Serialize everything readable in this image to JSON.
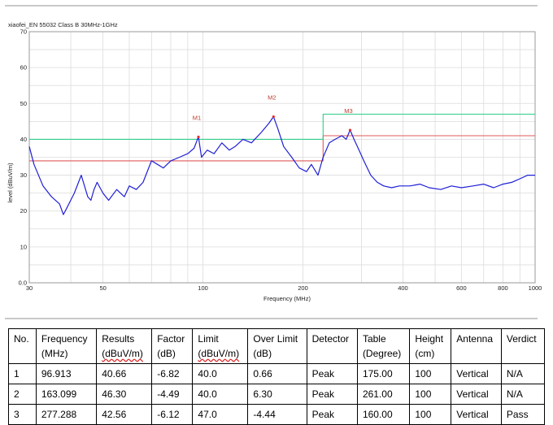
{
  "chart_data": {
    "type": "line",
    "title": "xiaofei_EN 55032 Class B 30MHz-1GHz",
    "xlabel": "Frequency (MHz)",
    "ylabel": "level (dBuV/m)",
    "x_scale": "log",
    "xlim": [
      30,
      1000
    ],
    "ylim": [
      0,
      70
    ],
    "x_ticks": [
      30,
      50,
      100,
      200,
      400,
      600,
      800,
      1000
    ],
    "x_tick_labels": [
      "30",
      "50",
      "100",
      "200",
      "400",
      "600",
      "800",
      "1000"
    ],
    "y_ticks": [
      0,
      10,
      20,
      30,
      40,
      50,
      60,
      70
    ],
    "y_tick_labels": [
      "0.0",
      "10",
      "20",
      "30",
      "40",
      "50",
      "60",
      "70"
    ],
    "grid": true,
    "series": [
      {
        "name": "",
        "color": "#1f1fd6",
        "x": [
          30,
          31,
          33,
          35,
          37,
          38,
          39,
          41,
          43,
          45,
          46,
          47,
          48,
          50,
          52,
          55,
          58,
          60,
          63,
          66,
          70,
          73,
          76,
          80,
          85,
          90,
          94,
          96.9,
          99,
          103,
          108,
          114,
          120,
          125,
          132,
          140,
          150,
          158,
          163.1,
          168,
          175,
          185,
          195,
          205,
          212,
          222,
          230,
          240,
          250,
          262,
          270,
          277.3,
          285,
          295,
          305,
          320,
          335,
          350,
          370,
          390,
          420,
          450,
          480,
          520,
          560,
          600,
          650,
          700,
          750,
          800,
          850,
          900,
          950,
          1000
        ],
        "y": [
          38,
          33,
          27,
          24,
          22,
          19,
          21,
          25,
          30,
          24,
          23,
          26,
          28,
          25,
          23,
          26,
          24,
          27,
          26,
          28,
          34,
          33,
          32,
          34,
          35,
          36,
          37.5,
          40.7,
          35,
          37,
          36,
          39,
          37,
          38,
          40,
          39,
          42,
          44.5,
          46.3,
          43,
          38,
          35,
          32,
          31,
          33,
          30,
          35,
          39,
          40,
          41,
          40,
          42.6,
          40,
          37,
          34,
          30,
          28,
          27,
          26.5,
          27,
          27,
          27.5,
          26.5,
          26,
          27,
          26.5,
          27,
          27.5,
          26.5,
          27.5,
          28,
          29,
          30,
          30
        ]
      },
      {
        "name": "",
        "color": "#e05a5a",
        "x": [
          30,
          230,
          230,
          1000
        ],
        "y": [
          34,
          34,
          41,
          41
        ]
      },
      {
        "name": "",
        "color": "#2ecc8a",
        "x": [
          30,
          230,
          230,
          1000
        ],
        "y": [
          40,
          40,
          47,
          47
        ]
      }
    ],
    "markers": [
      {
        "label": "M1",
        "x": 96.913,
        "y": 40.66
      },
      {
        "label": "M2",
        "x": 163.099,
        "y": 46.3
      },
      {
        "label": "M3",
        "x": 277.288,
        "y": 42.56
      }
    ]
  },
  "table": {
    "headers": [
      [
        "No."
      ],
      [
        "Frequency",
        "(MHz)"
      ],
      [
        "Results",
        "(dBuV/m)"
      ],
      [
        "Factor",
        "(dB)"
      ],
      [
        "Limit",
        "(dBuV/m)"
      ],
      [
        "Over Limit",
        "(dB)"
      ],
      [
        "Detector"
      ],
      [
        "Table",
        "(Degree)"
      ],
      [
        "Height",
        "(cm)"
      ],
      [
        "Antenna"
      ],
      [
        "Verdict"
      ]
    ],
    "rows": [
      [
        "1",
        "96.913",
        "40.66",
        "-6.82",
        "40.0",
        "0.66",
        "Peak",
        "175.00",
        "100",
        "Vertical",
        "N/A"
      ],
      [
        "2",
        "163.099",
        "46.30",
        "-4.49",
        "40.0",
        "6.30",
        "Peak",
        "261.00",
        "100",
        "Vertical",
        "N/A"
      ],
      [
        "3",
        "277.288",
        "42.56",
        "-6.12",
        "47.0",
        "-4.44",
        "Peak",
        "160.00",
        "100",
        "Vertical",
        "Pass"
      ]
    ]
  }
}
